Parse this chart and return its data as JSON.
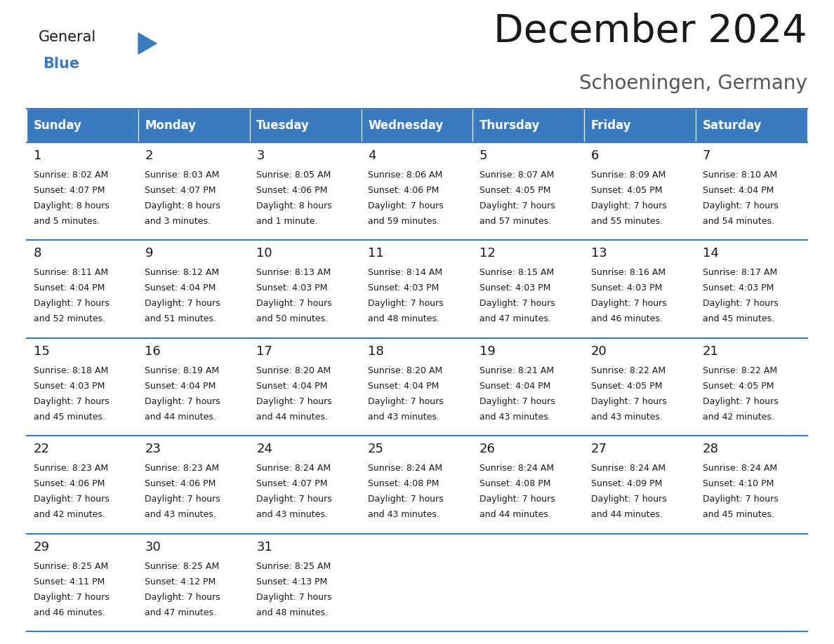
{
  "title": "December 2024",
  "subtitle": "Schoeningen, Germany",
  "header_color": "#3a7abf",
  "header_text_color": "#ffffff",
  "separator_color": "#3a7abf",
  "cell_bg": "#ffffff",
  "text_color": "#1a1a1a",
  "days_of_week": [
    "Sunday",
    "Monday",
    "Tuesday",
    "Wednesday",
    "Thursday",
    "Friday",
    "Saturday"
  ],
  "weeks": [
    [
      {
        "day": 1,
        "sunrise": "8:02 AM",
        "sunset": "4:07 PM",
        "daylight_h": "8 hours",
        "daylight_m": "and 5 minutes."
      },
      {
        "day": 2,
        "sunrise": "8:03 AM",
        "sunset": "4:07 PM",
        "daylight_h": "8 hours",
        "daylight_m": "and 3 minutes."
      },
      {
        "day": 3,
        "sunrise": "8:05 AM",
        "sunset": "4:06 PM",
        "daylight_h": "8 hours",
        "daylight_m": "and 1 minute."
      },
      {
        "day": 4,
        "sunrise": "8:06 AM",
        "sunset": "4:06 PM",
        "daylight_h": "7 hours",
        "daylight_m": "and 59 minutes."
      },
      {
        "day": 5,
        "sunrise": "8:07 AM",
        "sunset": "4:05 PM",
        "daylight_h": "7 hours",
        "daylight_m": "and 57 minutes."
      },
      {
        "day": 6,
        "sunrise": "8:09 AM",
        "sunset": "4:05 PM",
        "daylight_h": "7 hours",
        "daylight_m": "and 55 minutes."
      },
      {
        "day": 7,
        "sunrise": "8:10 AM",
        "sunset": "4:04 PM",
        "daylight_h": "7 hours",
        "daylight_m": "and 54 minutes."
      }
    ],
    [
      {
        "day": 8,
        "sunrise": "8:11 AM",
        "sunset": "4:04 PM",
        "daylight_h": "7 hours",
        "daylight_m": "and 52 minutes."
      },
      {
        "day": 9,
        "sunrise": "8:12 AM",
        "sunset": "4:04 PM",
        "daylight_h": "7 hours",
        "daylight_m": "and 51 minutes."
      },
      {
        "day": 10,
        "sunrise": "8:13 AM",
        "sunset": "4:03 PM",
        "daylight_h": "7 hours",
        "daylight_m": "and 50 minutes."
      },
      {
        "day": 11,
        "sunrise": "8:14 AM",
        "sunset": "4:03 PM",
        "daylight_h": "7 hours",
        "daylight_m": "and 48 minutes."
      },
      {
        "day": 12,
        "sunrise": "8:15 AM",
        "sunset": "4:03 PM",
        "daylight_h": "7 hours",
        "daylight_m": "and 47 minutes."
      },
      {
        "day": 13,
        "sunrise": "8:16 AM",
        "sunset": "4:03 PM",
        "daylight_h": "7 hours",
        "daylight_m": "and 46 minutes."
      },
      {
        "day": 14,
        "sunrise": "8:17 AM",
        "sunset": "4:03 PM",
        "daylight_h": "7 hours",
        "daylight_m": "and 45 minutes."
      }
    ],
    [
      {
        "day": 15,
        "sunrise": "8:18 AM",
        "sunset": "4:03 PM",
        "daylight_h": "7 hours",
        "daylight_m": "and 45 minutes."
      },
      {
        "day": 16,
        "sunrise": "8:19 AM",
        "sunset": "4:04 PM",
        "daylight_h": "7 hours",
        "daylight_m": "and 44 minutes."
      },
      {
        "day": 17,
        "sunrise": "8:20 AM",
        "sunset": "4:04 PM",
        "daylight_h": "7 hours",
        "daylight_m": "and 44 minutes."
      },
      {
        "day": 18,
        "sunrise": "8:20 AM",
        "sunset": "4:04 PM",
        "daylight_h": "7 hours",
        "daylight_m": "and 43 minutes."
      },
      {
        "day": 19,
        "sunrise": "8:21 AM",
        "sunset": "4:04 PM",
        "daylight_h": "7 hours",
        "daylight_m": "and 43 minutes."
      },
      {
        "day": 20,
        "sunrise": "8:22 AM",
        "sunset": "4:05 PM",
        "daylight_h": "7 hours",
        "daylight_m": "and 43 minutes."
      },
      {
        "day": 21,
        "sunrise": "8:22 AM",
        "sunset": "4:05 PM",
        "daylight_h": "7 hours",
        "daylight_m": "and 42 minutes."
      }
    ],
    [
      {
        "day": 22,
        "sunrise": "8:23 AM",
        "sunset": "4:06 PM",
        "daylight_h": "7 hours",
        "daylight_m": "and 42 minutes."
      },
      {
        "day": 23,
        "sunrise": "8:23 AM",
        "sunset": "4:06 PM",
        "daylight_h": "7 hours",
        "daylight_m": "and 43 minutes."
      },
      {
        "day": 24,
        "sunrise": "8:24 AM",
        "sunset": "4:07 PM",
        "daylight_h": "7 hours",
        "daylight_m": "and 43 minutes."
      },
      {
        "day": 25,
        "sunrise": "8:24 AM",
        "sunset": "4:08 PM",
        "daylight_h": "7 hours",
        "daylight_m": "and 43 minutes."
      },
      {
        "day": 26,
        "sunrise": "8:24 AM",
        "sunset": "4:08 PM",
        "daylight_h": "7 hours",
        "daylight_m": "and 44 minutes."
      },
      {
        "day": 27,
        "sunrise": "8:24 AM",
        "sunset": "4:09 PM",
        "daylight_h": "7 hours",
        "daylight_m": "and 44 minutes."
      },
      {
        "day": 28,
        "sunrise": "8:24 AM",
        "sunset": "4:10 PM",
        "daylight_h": "7 hours",
        "daylight_m": "and 45 minutes."
      }
    ],
    [
      {
        "day": 29,
        "sunrise": "8:25 AM",
        "sunset": "4:11 PM",
        "daylight_h": "7 hours",
        "daylight_m": "and 46 minutes."
      },
      {
        "day": 30,
        "sunrise": "8:25 AM",
        "sunset": "4:12 PM",
        "daylight_h": "7 hours",
        "daylight_m": "and 47 minutes."
      },
      {
        "day": 31,
        "sunrise": "8:25 AM",
        "sunset": "4:13 PM",
        "daylight_h": "7 hours",
        "daylight_m": "and 48 minutes."
      },
      null,
      null,
      null,
      null
    ]
  ],
  "logo_color_general": "#1a1a1a",
  "logo_color_blue": "#3a7abf",
  "logo_triangle_color": "#3a7abf",
  "title_fontsize": 40,
  "subtitle_fontsize": 20,
  "header_fontsize": 12,
  "day_num_fontsize": 13,
  "cell_text_fontsize": 9
}
